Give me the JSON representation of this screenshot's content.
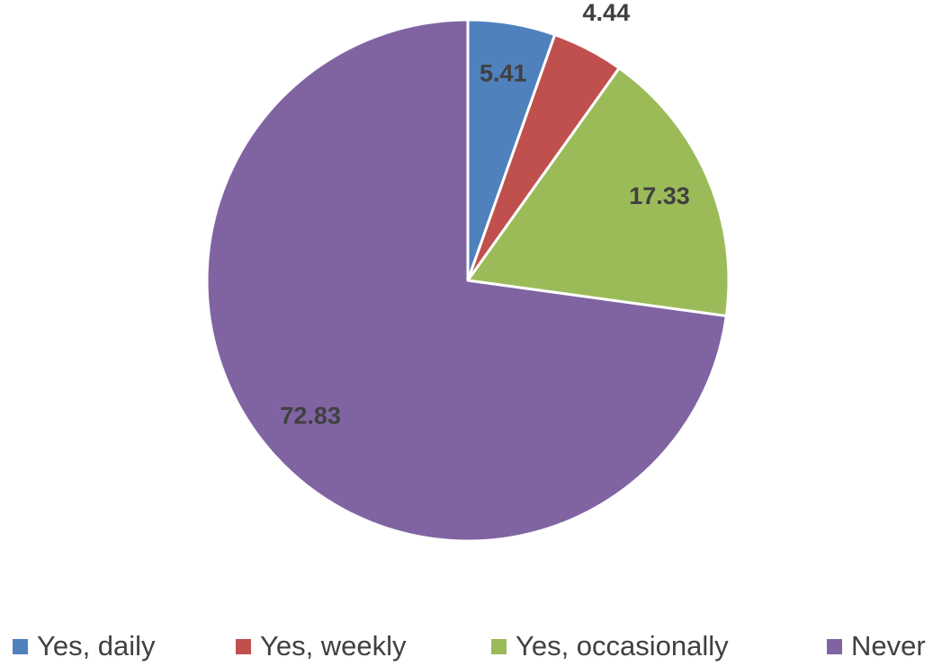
{
  "chart_data": {
    "type": "pie",
    "categories": [
      "Yes, daily",
      "Yes, weekly",
      "Yes, occasionally",
      "Never"
    ],
    "values": [
      5.41,
      4.44,
      17.33,
      72.83
    ],
    "colors": [
      "#4f81bd",
      "#c0504d",
      "#9bbb59",
      "#8064a2"
    ],
    "legend": "bottom"
  }
}
